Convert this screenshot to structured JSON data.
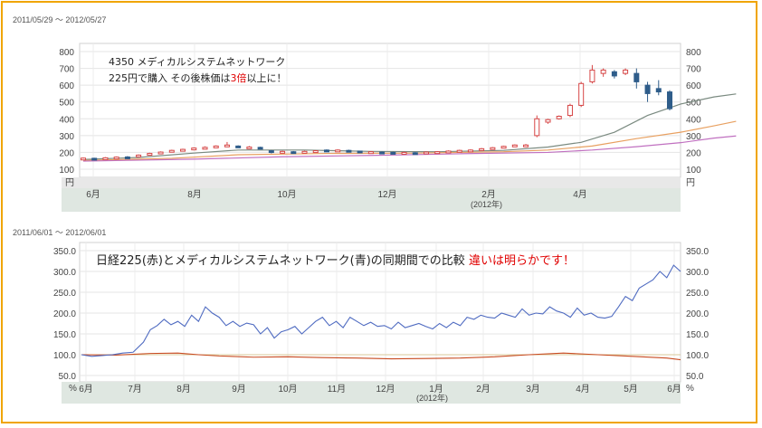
{
  "chart_data": [
    {
      "type": "candlestick",
      "date_range": "2011/05/29 ～ 2012/05/27",
      "ylim": [
        100,
        800
      ],
      "y_ticks": [
        "800",
        "700",
        "600",
        "500",
        "400",
        "300",
        "200",
        "100"
      ],
      "y_unit": "円",
      "x_ticks": [
        "6月",
        "8月",
        "10月",
        "12月",
        "2月",
        "4月"
      ],
      "x_sublabel": "(2012年)",
      "annotation": {
        "line1": "4350 メディカルシステムネットワーク",
        "line2_pre": "225円で購入 その後株価は",
        "line2_red": "3倍",
        "line2_post": "以上に！"
      },
      "colors": {
        "up": "#d64545",
        "down": "#2f5d8a",
        "ma_short": "#7a8a80",
        "ma_mid": "#e8a060",
        "ma_long": "#c070c0"
      },
      "candles": [
        {
          "o": 160,
          "c": 166,
          "h": 170,
          "l": 156
        },
        {
          "o": 165,
          "c": 160,
          "h": 168,
          "l": 156
        },
        {
          "o": 162,
          "c": 168,
          "h": 172,
          "l": 158
        },
        {
          "o": 168,
          "c": 172,
          "h": 176,
          "l": 164
        },
        {
          "o": 173,
          "c": 170,
          "h": 178,
          "l": 166
        },
        {
          "o": 175,
          "c": 184,
          "h": 188,
          "l": 172
        },
        {
          "o": 186,
          "c": 194,
          "h": 198,
          "l": 182
        },
        {
          "o": 196,
          "c": 202,
          "h": 206,
          "l": 192
        },
        {
          "o": 204,
          "c": 212,
          "h": 216,
          "l": 200
        },
        {
          "o": 212,
          "c": 218,
          "h": 222,
          "l": 208
        },
        {
          "o": 216,
          "c": 226,
          "h": 230,
          "l": 212
        },
        {
          "o": 224,
          "c": 230,
          "h": 236,
          "l": 220
        },
        {
          "o": 232,
          "c": 238,
          "h": 242,
          "l": 228
        },
        {
          "o": 242,
          "c": 244,
          "h": 262,
          "l": 238
        },
        {
          "o": 238,
          "c": 234,
          "h": 242,
          "l": 230
        },
        {
          "o": 226,
          "c": 232,
          "h": 238,
          "l": 222
        },
        {
          "o": 230,
          "c": 226,
          "h": 234,
          "l": 220
        },
        {
          "o": 210,
          "c": 208,
          "h": 214,
          "l": 194
        },
        {
          "o": 200,
          "c": 206,
          "h": 210,
          "l": 196
        },
        {
          "o": 204,
          "c": 198,
          "h": 208,
          "l": 194
        },
        {
          "o": 202,
          "c": 206,
          "h": 210,
          "l": 198
        },
        {
          "o": 206,
          "c": 210,
          "h": 214,
          "l": 200
        },
        {
          "o": 214,
          "c": 210,
          "h": 218,
          "l": 206
        },
        {
          "o": 210,
          "c": 214,
          "h": 218,
          "l": 206
        },
        {
          "o": 212,
          "c": 208,
          "h": 216,
          "l": 204
        },
        {
          "o": 208,
          "c": 200,
          "h": 210,
          "l": 196
        },
        {
          "o": 200,
          "c": 204,
          "h": 208,
          "l": 196
        },
        {
          "o": 202,
          "c": 198,
          "h": 206,
          "l": 194
        },
        {
          "o": 200,
          "c": 196,
          "h": 204,
          "l": 192
        },
        {
          "o": 196,
          "c": 200,
          "h": 204,
          "l": 192
        },
        {
          "o": 198,
          "c": 196,
          "h": 202,
          "l": 192
        },
        {
          "o": 198,
          "c": 202,
          "h": 206,
          "l": 194
        },
        {
          "o": 200,
          "c": 204,
          "h": 208,
          "l": 196
        },
        {
          "o": 204,
          "c": 208,
          "h": 212,
          "l": 200
        },
        {
          "o": 206,
          "c": 212,
          "h": 216,
          "l": 202
        },
        {
          "o": 212,
          "c": 214,
          "h": 218,
          "l": 208
        },
        {
          "o": 214,
          "c": 222,
          "h": 226,
          "l": 210
        },
        {
          "o": 222,
          "c": 228,
          "h": 232,
          "l": 218
        },
        {
          "o": 228,
          "c": 236,
          "h": 240,
          "l": 224
        },
        {
          "o": 236,
          "c": 244,
          "h": 248,
          "l": 232
        },
        {
          "o": 240,
          "c": 244,
          "h": 250,
          "l": 236
        },
        {
          "o": 300,
          "c": 400,
          "h": 420,
          "l": 290
        },
        {
          "o": 380,
          "c": 395,
          "h": 400,
          "l": 370
        },
        {
          "o": 400,
          "c": 415,
          "h": 420,
          "l": 395
        },
        {
          "o": 420,
          "c": 480,
          "h": 490,
          "l": 410
        },
        {
          "o": 480,
          "c": 610,
          "h": 620,
          "l": 470
        },
        {
          "o": 620,
          "c": 690,
          "h": 720,
          "l": 610
        },
        {
          "o": 670,
          "c": 690,
          "h": 700,
          "l": 650
        },
        {
          "o": 680,
          "c": 655,
          "h": 690,
          "l": 640
        },
        {
          "o": 670,
          "c": 690,
          "h": 700,
          "l": 660
        },
        {
          "o": 670,
          "c": 620,
          "h": 700,
          "l": 580
        },
        {
          "o": 600,
          "c": 550,
          "h": 620,
          "l": 500
        },
        {
          "o": 580,
          "c": 560,
          "h": 630,
          "l": 540
        },
        {
          "o": 560,
          "c": 460,
          "h": 570,
          "l": 450
        }
      ],
      "ma_short": [
        [
          0,
          158
        ],
        [
          5,
          170
        ],
        [
          10,
          196
        ],
        [
          14,
          214
        ],
        [
          20,
          214
        ],
        [
          26,
          206
        ],
        [
          32,
          204
        ],
        [
          38,
          212
        ],
        [
          42,
          232
        ],
        [
          45,
          260
        ],
        [
          48,
          320
        ],
        [
          51,
          420
        ],
        [
          54,
          488
        ],
        [
          57,
          530
        ],
        [
          59,
          548
        ]
      ],
      "ma_mid": [
        [
          0,
          152
        ],
        [
          8,
          165
        ],
        [
          14,
          186
        ],
        [
          22,
          194
        ],
        [
          30,
          196
        ],
        [
          38,
          204
        ],
        [
          42,
          214
        ],
        [
          46,
          238
        ],
        [
          50,
          282
        ],
        [
          54,
          320
        ],
        [
          57,
          358
        ],
        [
          59,
          385
        ]
      ],
      "ma_long": [
        [
          0,
          148
        ],
        [
          10,
          160
        ],
        [
          18,
          174
        ],
        [
          26,
          182
        ],
        [
          34,
          192
        ],
        [
          42,
          200
        ],
        [
          46,
          214
        ],
        [
          50,
          234
        ],
        [
          54,
          258
        ],
        [
          57,
          285
        ],
        [
          59,
          298
        ]
      ]
    },
    {
      "type": "line",
      "date_range": "2011/06/01 ～ 2012/06/01",
      "ylim": [
        50,
        350
      ],
      "y_ticks": [
        "350.0",
        "300.0",
        "250.0",
        "200.0",
        "150.0",
        "100.0",
        "50.0"
      ],
      "y_unit": "%",
      "x_ticks": [
        "6月",
        "7月",
        "8月",
        "9月",
        "10月",
        "11月",
        "12月",
        "1月",
        "2月",
        "3月",
        "4月",
        "5月",
        "6月"
      ],
      "x_sublabel": "(2012年)",
      "annotation": {
        "pre": "日経225(赤)とメディカルシステムネットワーク(青)の同期間での比較 ",
        "red": "違いは明らかです！"
      },
      "series": [
        {
          "color": "#4f6bc1",
          "values": [
            [
              0,
              100
            ],
            [
              3,
              96
            ],
            [
              6,
              98
            ],
            [
              9,
              100
            ],
            [
              12,
              104
            ],
            [
              15,
              106
            ],
            [
              18,
              130
            ],
            [
              20,
              160
            ],
            [
              22,
              170
            ],
            [
              24,
              185
            ],
            [
              26,
              172
            ],
            [
              28,
              180
            ],
            [
              30,
              168
            ],
            [
              32,
              195
            ],
            [
              34,
              180
            ],
            [
              36,
              215
            ],
            [
              38,
              200
            ],
            [
              40,
              190
            ],
            [
              42,
              170
            ],
            [
              44,
              180
            ],
            [
              46,
              168
            ],
            [
              48,
              176
            ],
            [
              50,
              172
            ],
            [
              52,
              150
            ],
            [
              54,
              165
            ],
            [
              56,
              140
            ],
            [
              58,
              155
            ],
            [
              60,
              160
            ],
            [
              62,
              168
            ],
            [
              64,
              150
            ],
            [
              66,
              165
            ],
            [
              68,
              180
            ],
            [
              70,
              190
            ],
            [
              72,
              170
            ],
            [
              74,
              180
            ],
            [
              76,
              165
            ],
            [
              78,
              190
            ],
            [
              80,
              180
            ],
            [
              82,
              170
            ],
            [
              84,
              178
            ],
            [
              86,
              168
            ],
            [
              88,
              170
            ],
            [
              90,
              162
            ],
            [
              92,
              178
            ],
            [
              94,
              165
            ],
            [
              96,
              170
            ],
            [
              98,
              175
            ],
            [
              100,
              168
            ],
            [
              102,
              162
            ],
            [
              104,
              175
            ],
            [
              106,
              165
            ],
            [
              108,
              178
            ],
            [
              110,
              170
            ],
            [
              112,
              190
            ],
            [
              114,
              185
            ],
            [
              116,
              195
            ],
            [
              118,
              190
            ],
            [
              120,
              188
            ],
            [
              122,
              200
            ],
            [
              124,
              195
            ],
            [
              126,
              190
            ],
            [
              128,
              210
            ],
            [
              130,
              195
            ],
            [
              132,
              200
            ],
            [
              134,
              198
            ],
            [
              136,
              215
            ],
            [
              138,
              205
            ],
            [
              140,
              200
            ],
            [
              142,
              190
            ],
            [
              144,
              212
            ],
            [
              146,
              195
            ],
            [
              148,
              200
            ],
            [
              150,
              190
            ],
            [
              152,
              188
            ],
            [
              154,
              192
            ],
            [
              156,
              215
            ],
            [
              158,
              240
            ],
            [
              160,
              230
            ],
            [
              162,
              260
            ],
            [
              164,
              270
            ],
            [
              166,
              280
            ],
            [
              168,
              300
            ],
            [
              170,
              285
            ],
            [
              172,
              315
            ],
            [
              174,
              300
            ]
          ]
        },
        {
          "color": "#c84a20",
          "values": [
            [
              0,
              100
            ],
            [
              10,
              99
            ],
            [
              20,
              103
            ],
            [
              28,
              104
            ],
            [
              34,
              100
            ],
            [
              40,
              97
            ],
            [
              50,
              94
            ],
            [
              60,
              95
            ],
            [
              70,
              93
            ],
            [
              80,
              92
            ],
            [
              90,
              90
            ],
            [
              100,
              91
            ],
            [
              110,
              92
            ],
            [
              120,
              95
            ],
            [
              130,
              100
            ],
            [
              140,
              104
            ],
            [
              150,
              100
            ],
            [
              160,
              96
            ],
            [
              170,
              92
            ],
            [
              174,
              88
            ]
          ]
        },
        {
          "color": "#d8c89a",
          "values": [
            [
              0,
              100
            ],
            [
              174,
              100
            ]
          ]
        }
      ]
    }
  ]
}
